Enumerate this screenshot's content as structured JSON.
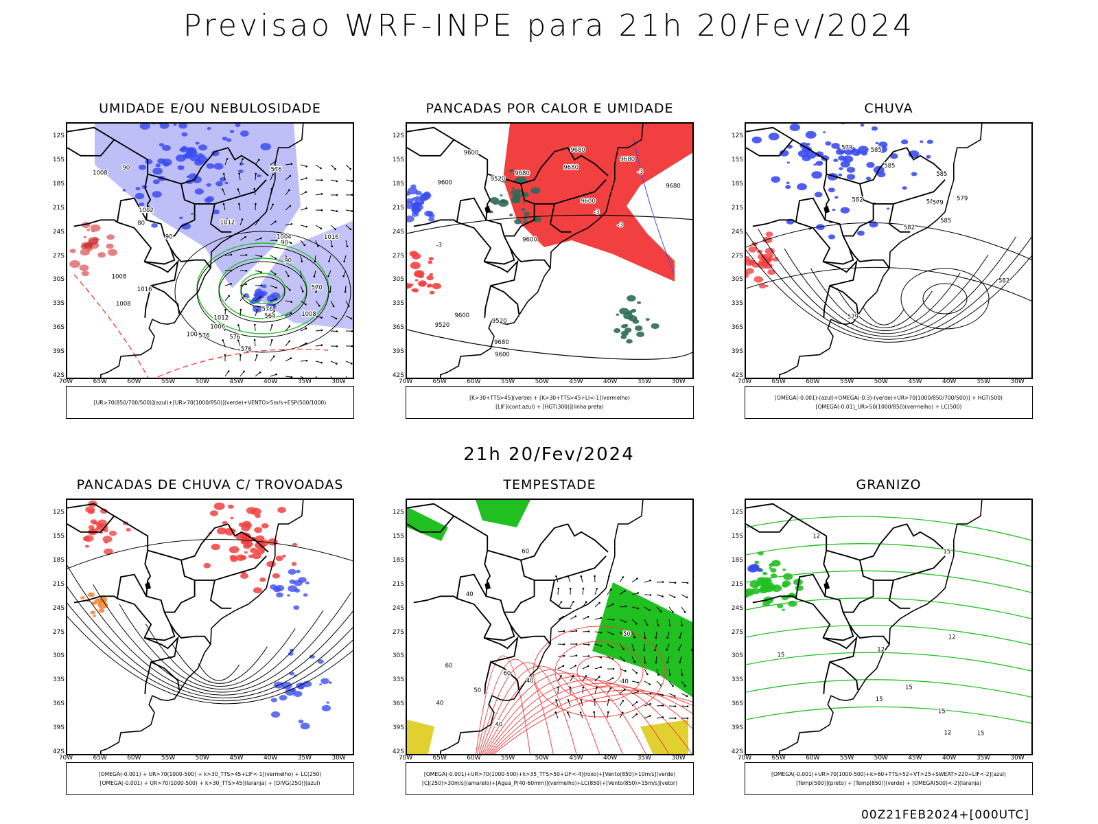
{
  "header": {
    "title": "Previsao WRF-INPE  para 21h 20/Fev/2024"
  },
  "subheader": {
    "title": "21h 20/Fev/2024"
  },
  "footer": {
    "run": "00Z21FEB2024+[000UTC]"
  },
  "axes": {
    "lat_labels": [
      "12S",
      "15S",
      "18S",
      "21S",
      "24S",
      "27S",
      "30S",
      "33S",
      "36S",
      "39S",
      "42S"
    ],
    "lon_labels": [
      "70W",
      "65W",
      "60W",
      "55W",
      "50W",
      "45W",
      "40W",
      "35W",
      "30W"
    ]
  },
  "colors": {
    "blue": "#3b4cf0",
    "lightblue": "#a9a9f5",
    "green": "#21c021",
    "red": "#f24040",
    "darkgreen": "#2f6a58",
    "yellow": "#e0d030",
    "orange": "#f07a20"
  },
  "panels": [
    {
      "title": "UMIDADE E/OU NEBULOSIDADE",
      "legend": [
        "[UR>70(850/700/500)](azul)+[UR>70(1000/850)](verde)+VENTO>5m/s+ESP(500/1000)"
      ],
      "contour_labels": [
        "1008",
        "1012",
        "1012",
        "1008",
        "1016",
        "1008",
        "1006",
        "1008",
        "1004",
        "1012",
        "1016",
        "1008",
        "576",
        "576",
        "576",
        "576",
        "576",
        "564",
        "570",
        "90",
        "90",
        "90",
        "80",
        "90"
      ]
    },
    {
      "title": "PANCADAS POR CALOR E UMIDADE",
      "legend": [
        "[K>30+TTS>45](verde) + [K>30+TTS>45+LI<-1](vermelho)",
        "[LIF](cont.azul) + [HGT(300)](linha preta)"
      ],
      "contour_labels": [
        "9680",
        "9680",
        "9680",
        "9680",
        "9680",
        "9600",
        "9600",
        "9600",
        "9600",
        "9520",
        "9600",
        "9600",
        "9520",
        "9520",
        "9680",
        "-3",
        "-3",
        "-3",
        "-3"
      ]
    },
    {
      "title": "CHUVA",
      "legend": [
        "[OMEGA(-0.001)-(azul)+OMEGA(-0.3)-(verde)+UR>70(1000/850/700/500)] + HGT(500)",
        "[OMEGA(-0.01)_UR>50(1000/850)(vermelho) + LC(500)"
      ],
      "contour_labels": [
        "585",
        "585",
        "585",
        "585",
        "582",
        "582",
        "579",
        "579",
        "585",
        "579",
        "582",
        "579"
      ]
    },
    {
      "title": "PANCADAS DE CHUVA C/ TROVOADAS",
      "legend": [
        "[OMEGA(-0.001) + UR>70(1000-500) + k>30_TTS>45+LIF<-1](vermelho) + LC(250)",
        "[OMEGA(-0.001) + UR>70(1000-500) + k>30_TTS>45](laranja) + [DIVG(250)](azul)"
      ],
      "contour_labels": []
    },
    {
      "title": "TEMPESTADE",
      "legend": [
        "[OMEGA(-0.001)+UR>70(1000-500)+k>35_TTS>50+LIF<-4](roxo)+[Vento(850)>10m/s](verde)",
        "[CJ(250)>30m/s](amarelo)+[Agua_P(40-60mm)](vermelho)+LC(850)+[Vento(850)>15m/s](vetor)"
      ],
      "contour_labels": [
        "40",
        "40",
        "60",
        "60",
        "40",
        "50",
        "60",
        "40",
        "50",
        "40"
      ]
    },
    {
      "title": "GRANIZO",
      "legend": [
        "[OMEGA(-0.001)+UR>70(1000-500)+k>60+TTS>52+VT>25+SWEAT>220+LIF<-2](azul)",
        "[Temp(500)](preto) + [Temp(850)](verde) + [OMEGA(500)<-2](laranja)"
      ],
      "contour_labels": [
        "12",
        "15",
        "12",
        "15",
        "15",
        "12",
        "15",
        "15",
        "15",
        "12"
      ]
    }
  ]
}
